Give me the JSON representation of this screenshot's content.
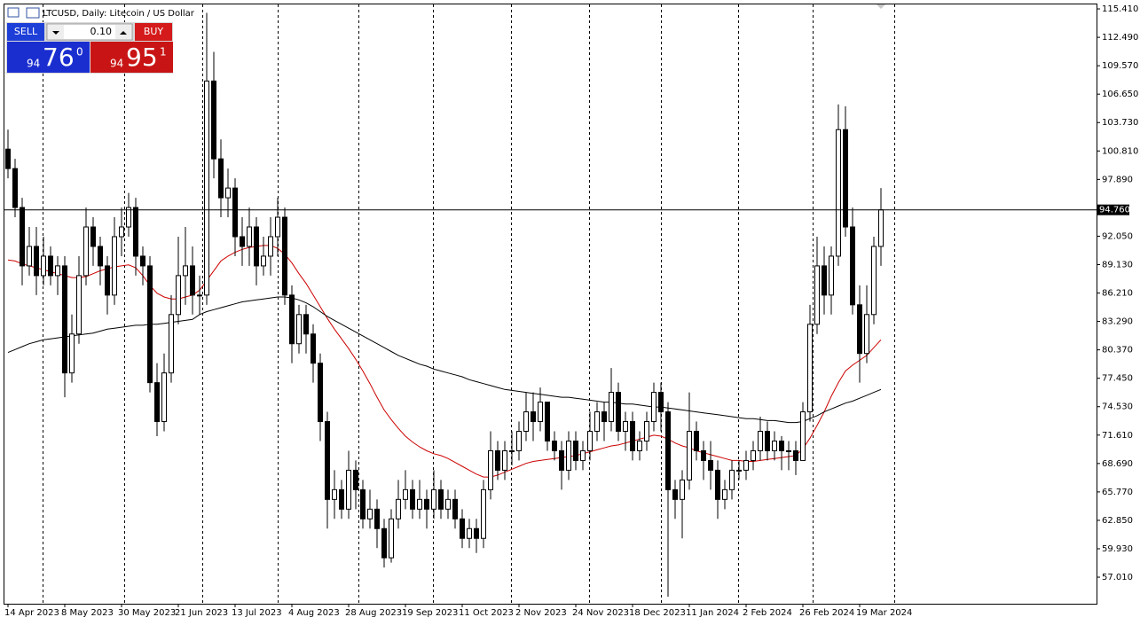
{
  "chart_data": {
    "type": "candlestick",
    "title": "LTCUSD, Daily:  Litecoin / US Dollar",
    "trade_panel": {
      "sell_label": "SELL",
      "buy_label": "BUY",
      "lot": "0.10",
      "sell_price": {
        "prefix": "94",
        "main": "76",
        "sup": "0"
      },
      "buy_price": {
        "prefix": "94",
        "main": "95",
        "sup": "1"
      }
    },
    "price_line": {
      "value": 94.76,
      "label": "94.760"
    },
    "categories": [
      "14 Apr 2023",
      null,
      null,
      null,
      null,
      null,
      null,
      null,
      "8 May 2023",
      null,
      null,
      null,
      null,
      null,
      null,
      null,
      "30 May 2023",
      null,
      null,
      null,
      null,
      null,
      null,
      null,
      "21 Jun 2023",
      null,
      null,
      null,
      null,
      null,
      null,
      null,
      "13 Jul 2023",
      null,
      null,
      null,
      null,
      null,
      null,
      null,
      "4 Aug 2023",
      null,
      null,
      null,
      null,
      null,
      null,
      null,
      "28 Aug 2023",
      null,
      null,
      null,
      null,
      null,
      null,
      null,
      "19 Sep 2023",
      null,
      null,
      null,
      null,
      null,
      null,
      null,
      "11 Oct 2023",
      null,
      null,
      null,
      null,
      null,
      null,
      null,
      "2 Nov 2023",
      null,
      null,
      null,
      null,
      null,
      null,
      null,
      "24 Nov 2023",
      null,
      null,
      null,
      null,
      null,
      null,
      null,
      "18 Dec 2023",
      null,
      null,
      null,
      null,
      null,
      null,
      null,
      "11 Jan 2024",
      null,
      null,
      null,
      null,
      null,
      null,
      null,
      "2 Feb 2024",
      null,
      null,
      null,
      null,
      null,
      null,
      null,
      "26 Feb 2024",
      null,
      null,
      null,
      null,
      null,
      null,
      null,
      "19 Mar 2024",
      null,
      null,
      null
    ],
    "open": [
      101,
      99,
      95,
      89,
      91,
      88,
      90,
      88,
      89,
      78,
      82,
      88,
      93,
      91,
      89,
      86,
      92,
      93,
      95,
      90,
      89,
      77,
      73,
      78,
      84,
      88,
      89,
      86,
      86,
      108,
      100,
      96,
      97,
      92,
      91,
      93,
      89,
      90,
      92,
      94,
      86,
      81,
      84,
      82,
      79,
      73,
      65,
      66,
      64,
      68,
      66,
      63,
      64,
      62,
      59,
      63,
      65,
      66,
      64,
      65,
      64,
      66,
      64,
      65,
      63,
      61,
      62,
      61,
      66,
      70,
      68,
      70,
      70,
      72,
      74,
      73,
      75,
      71,
      70,
      68,
      71,
      69,
      70,
      72,
      74,
      73,
      76,
      72,
      73,
      70,
      71,
      73,
      76,
      74,
      66,
      65,
      67,
      72,
      70,
      69,
      68,
      65,
      66,
      68,
      68,
      69,
      70,
      72,
      70,
      71,
      70,
      70,
      69,
      74,
      83,
      89,
      86,
      90,
      103,
      93,
      85,
      80,
      84,
      91
    ],
    "high": [
      103,
      100,
      96,
      93,
      93,
      92,
      91,
      90,
      90,
      84,
      90,
      95,
      94,
      92,
      90,
      94,
      95,
      96.5,
      96,
      91,
      90,
      79,
      80,
      86,
      92,
      93,
      91,
      88,
      115,
      111,
      102,
      99,
      98,
      94,
      95,
      94,
      92,
      94,
      96,
      95,
      87,
      85,
      85,
      83,
      80,
      74,
      68,
      67,
      70,
      69,
      67,
      66,
      65,
      63,
      64,
      67,
      68,
      67,
      67,
      66,
      68,
      67,
      66,
      66,
      64,
      63,
      63,
      67,
      72,
      71,
      71,
      72,
      73,
      76,
      76,
      76.5,
      75,
      72,
      71,
      72,
      72,
      71,
      74,
      75,
      75,
      78.5,
      77,
      74,
      74,
      72,
      74,
      77,
      77,
      75,
      67,
      68,
      76,
      73,
      71,
      71,
      69,
      67,
      69,
      69,
      70,
      71,
      73.5,
      73,
      72,
      71.5,
      71,
      71,
      75,
      85,
      92,
      91,
      91,
      105.6,
      105.4,
      95,
      87,
      87,
      92,
      97
    ],
    "low": [
      98,
      94,
      87,
      88,
      86,
      87,
      87,
      86,
      75.5,
      77,
      81,
      87,
      89,
      87,
      84,
      85,
      90,
      92,
      88,
      87,
      76,
      71.5,
      72,
      77,
      83,
      85,
      84,
      84,
      85,
      98,
      94,
      94,
      90,
      89,
      89,
      87,
      88,
      88,
      90,
      85,
      79,
      80,
      80,
      77,
      71,
      62,
      63,
      63,
      63,
      64,
      62,
      62,
      60,
      58,
      58.5,
      62,
      64,
      63,
      63,
      62,
      63,
      63,
      63,
      62,
      60,
      60,
      59.5,
      60,
      65,
      67,
      67,
      68.5,
      69,
      71,
      71,
      72,
      70,
      69,
      66,
      67,
      68,
      68,
      69,
      71,
      71,
      72,
      71,
      70,
      69,
      69,
      70,
      72,
      72,
      55,
      63,
      61,
      66,
      69,
      67,
      66,
      63,
      64,
      65,
      67,
      67,
      68,
      69,
      69,
      69,
      68,
      68,
      67.5,
      69,
      73,
      82,
      84,
      84,
      89,
      92,
      84,
      77,
      79,
      83,
      89
    ],
    "close": [
      99,
      95,
      89,
      91,
      88,
      90,
      88,
      89,
      78,
      82,
      88,
      93,
      91,
      89,
      86,
      92,
      93,
      95,
      90,
      89,
      77,
      73,
      78,
      84,
      88,
      89,
      86,
      86,
      108,
      100,
      96,
      97,
      92,
      91,
      93,
      89,
      90,
      92,
      94,
      86,
      81,
      84,
      82,
      79,
      73,
      65,
      66,
      64,
      68,
      66,
      63,
      64,
      62,
      59,
      63,
      65,
      66,
      64,
      65,
      64,
      66,
      64,
      65,
      63,
      61,
      62,
      61,
      66,
      70,
      68,
      70,
      70,
      72,
      74,
      73,
      75,
      71,
      70,
      68,
      71,
      69,
      70,
      72,
      74,
      73,
      76,
      72,
      73,
      70,
      71,
      73,
      76,
      74,
      66,
      65,
      67,
      72,
      70,
      69,
      68,
      65,
      66,
      68,
      68,
      69,
      70,
      72,
      70,
      71,
      70,
      70,
      69,
      74,
      83,
      89,
      86,
      90,
      103,
      93,
      85,
      80,
      84,
      91,
      94.76
    ],
    "series": [
      {
        "color": "#cc0000",
        "values": [
          89.6,
          89.5,
          89.2,
          89,
          88.8,
          88.6,
          88.4,
          88.2,
          88,
          87.8,
          87.8,
          87.9,
          88.2,
          88.5,
          88.7,
          88.9,
          89,
          89.1,
          88.8,
          88,
          87,
          86.2,
          85.8,
          85.6,
          85.6,
          85.8,
          86,
          86.5,
          87.5,
          88.5,
          89.5,
          90,
          90.4,
          90.7,
          90.9,
          91,
          91.1,
          91.1,
          90.8,
          90.2,
          89.3,
          88.2,
          87.2,
          86,
          84.8,
          83.6,
          82.5,
          81.5,
          80.5,
          79.4,
          78.2,
          76.9,
          75.5,
          74.2,
          73.2,
          72.3,
          71.5,
          70.9,
          70.4,
          70,
          69.7,
          69.5,
          69.2,
          68.8,
          68.4,
          68,
          67.6,
          67.3,
          67.3,
          67.5,
          67.8,
          68.1,
          68.4,
          68.7,
          68.9,
          69,
          69.1,
          69.2,
          69.3,
          69.4,
          69.5,
          69.7,
          69.9,
          70.1,
          70.3,
          70.5,
          70.6,
          70.8,
          71,
          71.2,
          71.4,
          71.6,
          71.5,
          71.2,
          70.8,
          70.5,
          70.3,
          70,
          69.8,
          69.6,
          69.4,
          69.2,
          69,
          69,
          68.9,
          68.9,
          69,
          69.1,
          69.2,
          69.3,
          69.4,
          69.5,
          70.2,
          71.3,
          72.6,
          74,
          75.6,
          77,
          78.2,
          78.8,
          79.3,
          79.8,
          80.6,
          81.4
        ]
      },
      {
        "color": "#000000",
        "values": [
          80.1,
          80.4,
          80.7,
          81,
          81.2,
          81.4,
          81.5,
          81.6,
          81.7,
          81.8,
          81.9,
          82,
          82.1,
          82.3,
          82.5,
          82.6,
          82.7,
          82.8,
          82.9,
          82.9,
          83,
          83,
          83.1,
          83.2,
          83.3,
          83.4,
          83.5,
          84,
          84.3,
          84.5,
          84.7,
          84.9,
          85.1,
          85.3,
          85.4,
          85.5,
          85.6,
          85.7,
          85.8,
          85.8,
          85.7,
          85.5,
          85.2,
          84.8,
          84.3,
          83.8,
          83.4,
          83,
          82.6,
          82.2,
          81.8,
          81.4,
          81,
          80.6,
          80.2,
          79.8,
          79.5,
          79.2,
          78.9,
          78.7,
          78.4,
          78.2,
          78,
          77.8,
          77.6,
          77.3,
          77.1,
          76.9,
          76.7,
          76.5,
          76.3,
          76.2,
          76.1,
          76,
          75.9,
          75.8,
          75.7,
          75.6,
          75.5,
          75.5,
          75.4,
          75.3,
          75.2,
          75.1,
          75,
          75,
          74.9,
          74.8,
          74.8,
          74.7,
          74.6,
          74.5,
          74.5,
          74.4,
          74.3,
          74.2,
          74.1,
          74,
          73.9,
          73.8,
          73.7,
          73.6,
          73.5,
          73.4,
          73.3,
          73.3,
          73.2,
          73.1,
          73.1,
          73,
          72.9,
          72.9,
          73,
          73.3,
          73.6,
          74,
          74.3,
          74.6,
          74.9,
          75.1,
          75.4,
          75.7,
          76,
          76.3
        ]
      }
    ],
    "ylim": [
      54.28,
      115.87
    ],
    "yticks": [
      {
        "value": 57.01,
        "label": "57.010"
      },
      {
        "value": 59.93,
        "label": "59.930"
      },
      {
        "value": 62.85,
        "label": "62.850"
      },
      {
        "value": 65.77,
        "label": "65.770"
      },
      {
        "value": 68.69,
        "label": "68.690"
      },
      {
        "value": 71.61,
        "label": "71.610"
      },
      {
        "value": 74.53,
        "label": "74.530"
      },
      {
        "value": 77.45,
        "label": "77.450"
      },
      {
        "value": 80.37,
        "label": "80.370"
      },
      {
        "value": 83.29,
        "label": "83.290"
      },
      {
        "value": 86.21,
        "label": "86.210"
      },
      {
        "value": 89.13,
        "label": "89.130"
      },
      {
        "value": 92.05,
        "label": "92.050"
      },
      {
        "value": 97.89,
        "label": "97.890"
      },
      {
        "value": 100.81,
        "label": "100.810"
      },
      {
        "value": 103.73,
        "label": "103.730"
      },
      {
        "value": 106.65,
        "label": "106.650"
      },
      {
        "value": 109.57,
        "label": "109.570"
      },
      {
        "value": 112.49,
        "label": "112.490"
      },
      {
        "value": 115.41,
        "label": "115.410"
      }
    ],
    "bull_color": "#ffffff",
    "bear_color": "#000000"
  }
}
